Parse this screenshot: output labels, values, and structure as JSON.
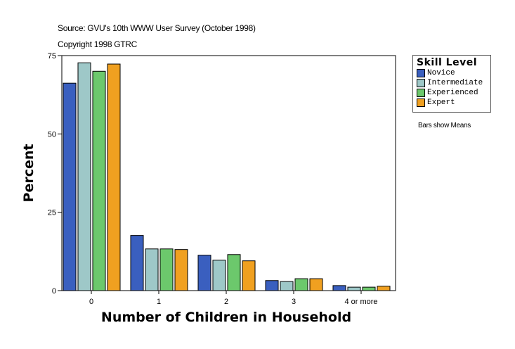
{
  "header": {
    "source": "Source: GVU's 10th WWW User Survey (October 1998)",
    "copyright": "Copyright 1998 GTRC"
  },
  "note": "Bars show Means",
  "chart_data": {
    "type": "bar",
    "xlabel": "Number of Children in Household",
    "ylabel": "Percent",
    "ylim": [
      0,
      75
    ],
    "yticks": [
      0,
      25,
      50,
      75
    ],
    "categories": [
      "0",
      "1",
      "2",
      "3",
      "4 or more"
    ],
    "legend_title": "Skill Level",
    "legend_position": "right",
    "grid": false,
    "series": [
      {
        "name": "Novice",
        "color": "#3a5fbf",
        "values": [
          66.2,
          17.6,
          11.3,
          3.2,
          1.6
        ]
      },
      {
        "name": "Intermediate",
        "color": "#9ec8c8",
        "values": [
          72.7,
          13.3,
          9.7,
          2.9,
          1.1
        ]
      },
      {
        "name": "Experienced",
        "color": "#6cc86c",
        "values": [
          70.0,
          13.3,
          11.5,
          3.8,
          1.1
        ]
      },
      {
        "name": "Expert",
        "color": "#f0a020",
        "values": [
          72.3,
          13.1,
          9.5,
          3.8,
          1.4
        ]
      }
    ]
  }
}
